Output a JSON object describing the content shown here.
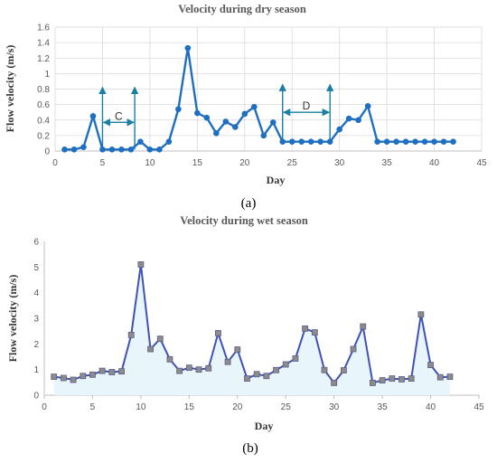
{
  "chart_data": [
    {
      "type": "line",
      "panel_label": "(a)",
      "title": "Velocity during dry season",
      "xlabel": "Day",
      "ylabel": "Flow velocity (m/s)",
      "xlim": [
        0,
        45
      ],
      "ylim": [
        0,
        1.6
      ],
      "xticks": [
        0,
        5,
        10,
        15,
        20,
        25,
        30,
        35,
        40,
        45
      ],
      "yticks": [
        0,
        0.2,
        0.4,
        0.6,
        0.8,
        1,
        1.2,
        1.4,
        1.6
      ],
      "grid": true,
      "color": "#1f6fc0",
      "x": [
        1,
        2,
        3,
        4,
        5,
        6,
        7,
        8,
        9,
        10,
        11,
        12,
        13,
        14,
        15,
        16,
        17,
        18,
        19,
        20,
        21,
        22,
        23,
        24,
        25,
        26,
        27,
        28,
        29,
        30,
        31,
        32,
        33,
        34,
        35,
        36,
        37,
        38,
        39,
        40,
        41,
        42
      ],
      "y": [
        0.02,
        0.02,
        0.05,
        0.45,
        0.02,
        0.02,
        0.02,
        0.02,
        0.12,
        0.02,
        0.02,
        0.12,
        0.54,
        1.33,
        0.49,
        0.43,
        0.23,
        0.38,
        0.31,
        0.48,
        0.57,
        0.2,
        0.37,
        0.12,
        0.12,
        0.12,
        0.12,
        0.12,
        0.12,
        0.28,
        0.42,
        0.4,
        0.58,
        0.12,
        0.12,
        0.12,
        0.12,
        0.12,
        0.12,
        0.12,
        0.12,
        0.12
      ],
      "annotations": [
        {
          "text": "C",
          "x_from": 5,
          "x_to": 8.4
        },
        {
          "text": "D",
          "x_from": 24,
          "x_to": 29
        }
      ]
    },
    {
      "type": "line",
      "panel_label": "(b)",
      "title": "Velocity during wet season",
      "xlabel": "Day",
      "ylabel": "Flow velocity (m/s)",
      "xlim": [
        0,
        45
      ],
      "ylim": [
        0,
        6
      ],
      "xticks": [
        0,
        5,
        10,
        15,
        20,
        25,
        30,
        35,
        40,
        45
      ],
      "yticks": [
        0,
        1,
        2,
        3,
        4,
        5,
        6
      ],
      "grid": false,
      "color": "#3f51b5",
      "marker_color": "#8c8c8c",
      "x": [
        1,
        2,
        3,
        4,
        5,
        6,
        7,
        8,
        9,
        10,
        11,
        12,
        13,
        14,
        15,
        16,
        17,
        18,
        19,
        20,
        21,
        22,
        23,
        24,
        25,
        26,
        27,
        28,
        29,
        30,
        31,
        32,
        33,
        34,
        35,
        36,
        37,
        38,
        39,
        40,
        41,
        42
      ],
      "y": [
        0.72,
        0.67,
        0.6,
        0.75,
        0.8,
        0.95,
        0.9,
        0.93,
        2.35,
        5.1,
        1.8,
        2.2,
        1.4,
        0.95,
        1.07,
        1.0,
        1.05,
        2.42,
        1.3,
        1.78,
        0.65,
        0.82,
        0.75,
        0.98,
        1.2,
        1.43,
        2.6,
        2.45,
        0.98,
        0.48,
        0.97,
        1.8,
        2.68,
        0.48,
        0.58,
        0.65,
        0.62,
        0.65,
        3.15,
        1.18,
        0.7,
        0.72
      ]
    }
  ]
}
